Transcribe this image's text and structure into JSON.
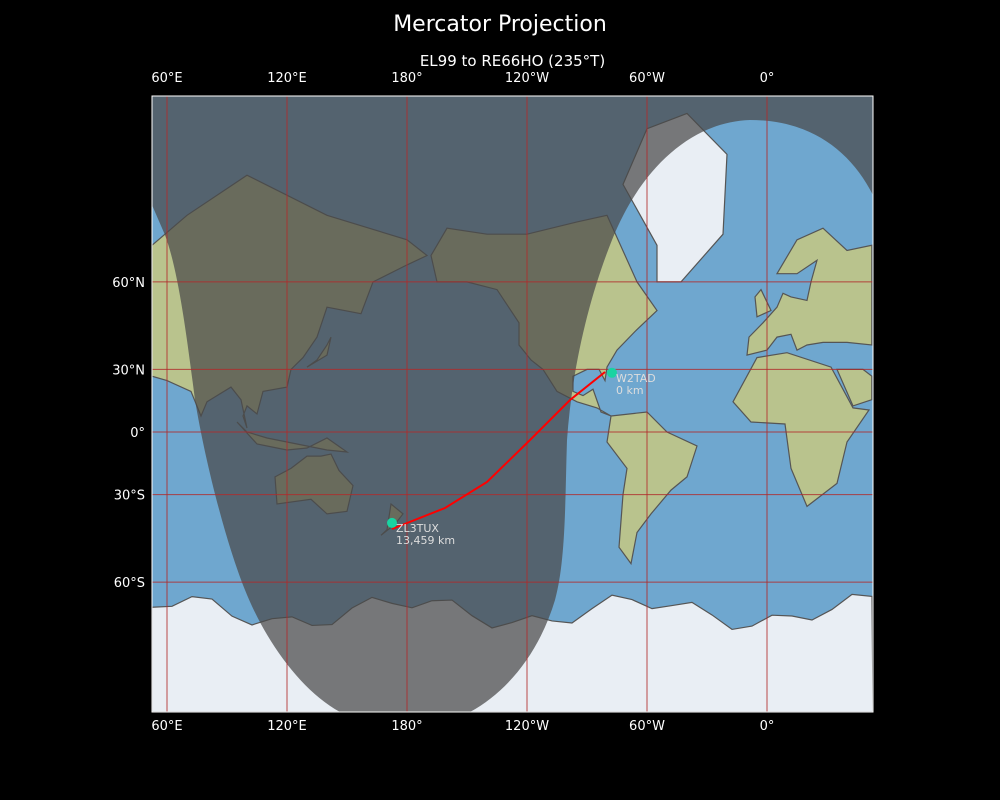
{
  "title": "Mercator Projection",
  "subtitle": "EL99 to RE66HO (235°T)",
  "lon_ticks": [
    "60°E",
    "120°E",
    "180°",
    "120°W",
    "60°W",
    "0°"
  ],
  "lat_ticks": [
    "60°N",
    "30°N",
    "0°",
    "30°S",
    "60°S"
  ],
  "stations": [
    {
      "call": "W2TAD",
      "distance": "0 km",
      "lon": -77.5,
      "lat": 28.5
    },
    {
      "call": "ZL3TUX",
      "distance": "13,459 km",
      "lon": 172.5,
      "lat": -41.5
    }
  ],
  "colors": {
    "route": "#ff0000",
    "station": "#19d3a2",
    "grid": "#b02a2a",
    "ocean": "#6fa7cf",
    "land": "#b9c38d",
    "ice": "#e9eef4"
  }
}
